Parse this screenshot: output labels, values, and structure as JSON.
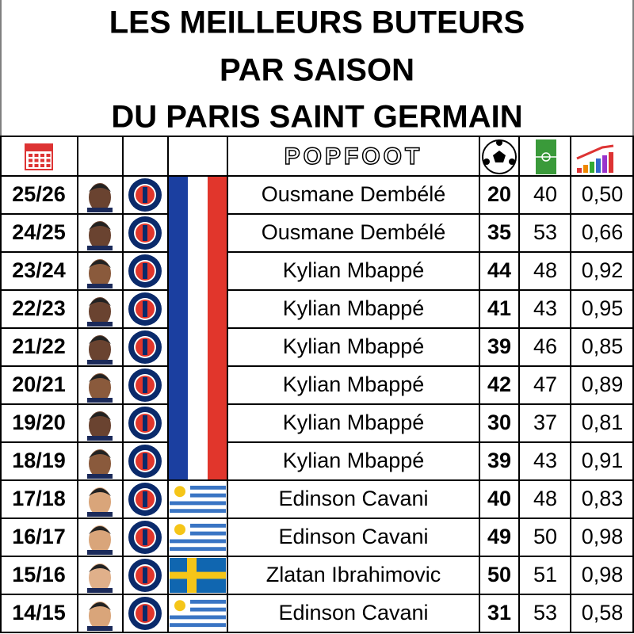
{
  "title": [
    "LES MEILLEURS BUTEURS",
    "PAR SAISON",
    "DU PARIS SAINT GERMAIN"
  ],
  "header": {
    "logo": "POPFOOT"
  },
  "table": {
    "rows": [
      [
        "25/26",
        "Ousmane Dembélé",
        20,
        40,
        "0,50"
      ],
      [
        "24/25",
        "Ousmane Dembélé",
        35,
        53,
        "0,66"
      ],
      [
        "23/24",
        "Kylian Mbappé",
        44,
        48,
        "0,92"
      ],
      [
        "22/23",
        "Kylian Mbappé",
        41,
        43,
        "0,95"
      ],
      [
        "21/22",
        "Kylian Mbappé",
        39,
        46,
        "0,85"
      ],
      [
        "20/21",
        "Kylian Mbappé",
        42,
        47,
        "0,89"
      ],
      [
        "19/20",
        "Kylian Mbappé",
        30,
        37,
        "0,81"
      ],
      [
        "18/19",
        "Kylian Mbappé",
        39,
        43,
        "0,91"
      ],
      [
        "17/18",
        "Edinson Cavani",
        40,
        48,
        "0,83"
      ],
      [
        "16/17",
        "Edinson Cavani",
        49,
        50,
        "0,98"
      ],
      [
        "15/16",
        "Zlatan Ibrahimovic",
        50,
        51,
        "0,98"
      ],
      [
        "14/15",
        "Edinson Cavani",
        31,
        53,
        "0,58"
      ]
    ]
  }
}
